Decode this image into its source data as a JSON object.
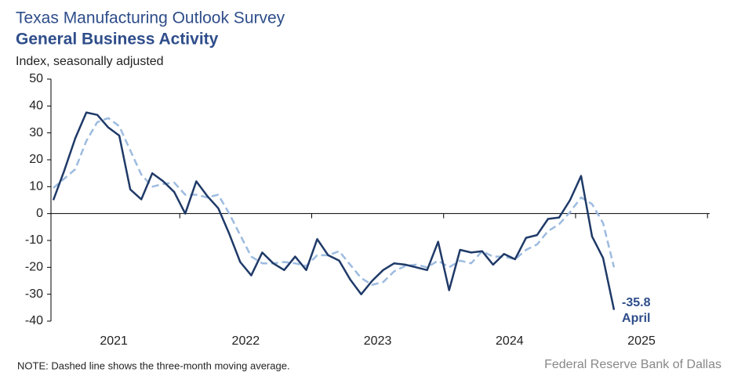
{
  "chart_data": {
    "type": "line",
    "title": "Texas Manufacturing Outlook Survey",
    "subtitle": "General Business Activity",
    "y_label": "Index, seasonally adjusted",
    "categories": [
      null,
      null,
      null,
      null,
      null,
      null,
      null,
      null,
      null,
      null,
      null,
      null,
      null,
      null,
      null,
      null,
      null,
      null,
      null,
      null,
      null,
      null,
      null,
      null,
      null,
      null,
      null,
      null,
      null,
      null,
      null,
      null,
      null,
      null,
      null,
      null,
      null,
      null,
      null,
      null,
      null,
      null,
      null,
      null,
      null,
      null,
      null,
      null,
      null,
      null,
      null,
      null
    ],
    "year_labels": [
      "2021",
      "2022",
      "2023",
      "2024",
      "2025"
    ],
    "series": [
      {
        "color": "#9dbbe0",
        "dashed": true,
        "values": [
          9.5,
          13,
          16.5,
          27,
          34,
          35.5,
          32.5,
          23.5,
          14.5,
          10,
          11,
          11.5,
          7,
          7,
          6,
          7,
          0,
          -8,
          -16,
          -18.5,
          -18.5,
          -18,
          -18.5,
          -19.5,
          -15.5,
          -15.5,
          -14,
          -19,
          -24,
          -26.5,
          -25.5,
          -21.5,
          -19.5,
          -19,
          -20,
          -17.5,
          -20,
          -17.5,
          -18.5,
          -14,
          -16,
          -16,
          -17,
          -13.5,
          -11.5,
          -6.5,
          -4,
          0.5,
          6,
          3.5,
          -3.5,
          -20
        ]
      },
      {
        "color": "#1f3a68",
        "dashed": false,
        "values": [
          5,
          16,
          28,
          37.6,
          36.7,
          32,
          29,
          9,
          5.3,
          15,
          12,
          8,
          0,
          12,
          6.5,
          2,
          -7.5,
          -18,
          -23,
          -14.5,
          -18.5,
          -21,
          -16,
          -21,
          -9.5,
          -15.5,
          -17.5,
          -24.5,
          -30,
          -25,
          -21,
          -18.5,
          -19,
          -20,
          -21,
          -10.5,
          -28.5,
          -13.5,
          -14.5,
          -14,
          -19,
          -15,
          -17,
          -9,
          -8,
          -2,
          -1.5,
          5,
          14,
          -8.5,
          -16.5,
          -35.8
        ]
      }
    ],
    "annotation": {
      "value_label": "-35.8",
      "month": "April"
    },
    "ylim": [
      -40,
      50
    ],
    "yticks": [
      -40,
      -30,
      -20,
      -10,
      0,
      10,
      20,
      30,
      40,
      50
    ],
    "note": "NOTE: Dashed line shows the three-month moving average.",
    "source": "Federal Reserve Bank of Dallas"
  }
}
